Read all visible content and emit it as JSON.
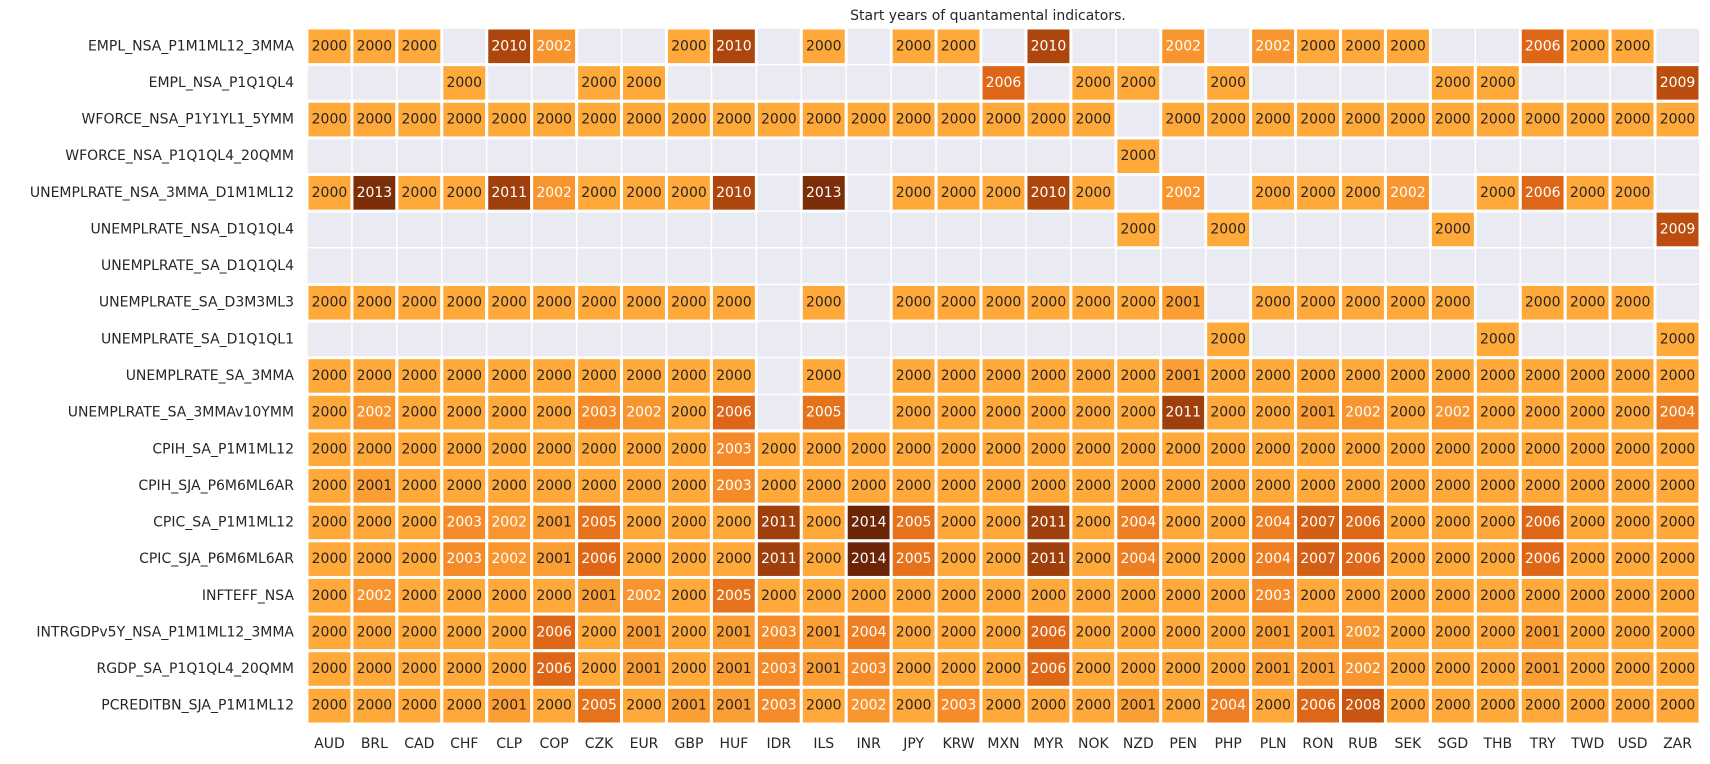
{
  "chart_data": {
    "type": "heatmap",
    "title": "Start years of quantamental indicators.",
    "x_categories": [
      "AUD",
      "BRL",
      "CAD",
      "CHF",
      "CLP",
      "COP",
      "CZK",
      "EUR",
      "GBP",
      "HUF",
      "IDR",
      "ILS",
      "INR",
      "JPY",
      "KRW",
      "MXN",
      "MYR",
      "NOK",
      "NZD",
      "PEN",
      "PHP",
      "PLN",
      "RON",
      "RUB",
      "SEK",
      "SGD",
      "THB",
      "TRY",
      "TWD",
      "USD",
      "ZAR"
    ],
    "y_categories": [
      "EMPL_NSA_P1M1ML12_3MMA",
      "EMPL_NSA_P1Q1QL4",
      "WFORCE_NSA_P1Y1YL1_5YMM",
      "WFORCE_NSA_P1Q1QL4_20QMM",
      "UNEMPLRATE_NSA_3MMA_D1M1ML12",
      "UNEMPLRATE_NSA_D1Q1QL4",
      "UNEMPLRATE_SA_D1Q1QL4",
      "UNEMPLRATE_SA_D3M3ML3",
      "UNEMPLRATE_SA_D1Q1QL1",
      "UNEMPLRATE_SA_3MMA",
      "UNEMPLRATE_SA_3MMAv10YMM",
      "CPIH_SA_P1M1ML12",
      "CPIH_SJA_P6M6ML6AR",
      "CPIC_SA_P1M1ML12",
      "CPIC_SJA_P6M6ML6AR",
      "INFTEFF_NSA",
      "INTRGDPv5Y_NSA_P1M1ML12_3MMA",
      "RGDP_SA_P1Q1QL4_20QMM",
      "PCREDITBN_SJA_P1M1ML12"
    ],
    "values": [
      [
        2000,
        2000,
        2000,
        null,
        2010,
        2002,
        null,
        null,
        2000,
        2010,
        null,
        2000,
        null,
        2000,
        2000,
        null,
        2010,
        null,
        null,
        2002,
        null,
        2002,
        2000,
        2000,
        2000,
        null,
        null,
        2006,
        2000,
        2000,
        null
      ],
      [
        null,
        null,
        null,
        2000,
        null,
        null,
        2000,
        2000,
        null,
        null,
        null,
        null,
        null,
        null,
        null,
        2006,
        null,
        2000,
        2000,
        null,
        2000,
        null,
        null,
        null,
        null,
        2000,
        2000,
        null,
        null,
        null,
        2009
      ],
      [
        2000,
        2000,
        2000,
        2000,
        2000,
        2000,
        2000,
        2000,
        2000,
        2000,
        2000,
        2000,
        2000,
        2000,
        2000,
        2000,
        2000,
        2000,
        null,
        2000,
        2000,
        2000,
        2000,
        2000,
        2000,
        2000,
        2000,
        2000,
        2000,
        2000,
        2000
      ],
      [
        null,
        null,
        null,
        null,
        null,
        null,
        null,
        null,
        null,
        null,
        null,
        null,
        null,
        null,
        null,
        null,
        null,
        null,
        2000,
        null,
        null,
        null,
        null,
        null,
        null,
        null,
        null,
        null,
        null,
        null,
        null
      ],
      [
        2000,
        2013,
        2000,
        2000,
        2011,
        2002,
        2000,
        2000,
        2000,
        2010,
        null,
        2013,
        null,
        2000,
        2000,
        2000,
        2010,
        2000,
        null,
        2002,
        null,
        2000,
        2000,
        2000,
        2002,
        null,
        2000,
        2006,
        2000,
        2000,
        null
      ],
      [
        null,
        null,
        null,
        null,
        null,
        null,
        null,
        null,
        null,
        null,
        null,
        null,
        null,
        null,
        null,
        null,
        null,
        null,
        2000,
        null,
        2000,
        null,
        null,
        null,
        null,
        2000,
        null,
        null,
        null,
        null,
        2009
      ],
      [
        null,
        null,
        null,
        null,
        null,
        null,
        null,
        null,
        null,
        null,
        null,
        null,
        null,
        null,
        null,
        null,
        null,
        null,
        null,
        null,
        null,
        null,
        null,
        null,
        null,
        null,
        null,
        null,
        null,
        null,
        null
      ],
      [
        2000,
        2000,
        2000,
        2000,
        2000,
        2000,
        2000,
        2000,
        2000,
        2000,
        null,
        2000,
        null,
        2000,
        2000,
        2000,
        2000,
        2000,
        2000,
        2001,
        null,
        2000,
        2000,
        2000,
        2000,
        2000,
        null,
        2000,
        2000,
        2000,
        null
      ],
      [
        null,
        null,
        null,
        null,
        null,
        null,
        null,
        null,
        null,
        null,
        null,
        null,
        null,
        null,
        null,
        null,
        null,
        null,
        null,
        null,
        2000,
        null,
        null,
        null,
        null,
        null,
        2000,
        null,
        null,
        null,
        2000
      ],
      [
        2000,
        2000,
        2000,
        2000,
        2000,
        2000,
        2000,
        2000,
        2000,
        2000,
        null,
        2000,
        null,
        2000,
        2000,
        2000,
        2000,
        2000,
        2000,
        2001,
        2000,
        2000,
        2000,
        2000,
        2000,
        2000,
        2000,
        2000,
        2000,
        2000,
        2000
      ],
      [
        2000,
        2002,
        2000,
        2000,
        2000,
        2000,
        2003,
        2002,
        2000,
        2006,
        null,
        2005,
        null,
        2000,
        2000,
        2000,
        2000,
        2000,
        2000,
        2011,
        2000,
        2000,
        2001,
        2002,
        2000,
        2002,
        2000,
        2000,
        2000,
        2000,
        2004
      ],
      [
        2000,
        2000,
        2000,
        2000,
        2000,
        2000,
        2000,
        2000,
        2000,
        2003,
        2000,
        2000,
        2000,
        2000,
        2000,
        2000,
        2000,
        2000,
        2000,
        2000,
        2000,
        2000,
        2000,
        2000,
        2000,
        2000,
        2000,
        2000,
        2000,
        2000,
        2000
      ],
      [
        2000,
        2001,
        2000,
        2000,
        2000,
        2000,
        2000,
        2000,
        2000,
        2003,
        2000,
        2000,
        2000,
        2000,
        2000,
        2000,
        2000,
        2000,
        2000,
        2000,
        2000,
        2000,
        2000,
        2000,
        2000,
        2000,
        2000,
        2000,
        2000,
        2000,
        2000
      ],
      [
        2000,
        2000,
        2000,
        2003,
        2002,
        2001,
        2005,
        2000,
        2000,
        2000,
        2011,
        2000,
        2014,
        2005,
        2000,
        2000,
        2011,
        2000,
        2004,
        2000,
        2000,
        2004,
        2007,
        2006,
        2000,
        2000,
        2000,
        2006,
        2000,
        2000,
        2000
      ],
      [
        2000,
        2000,
        2000,
        2003,
        2002,
        2001,
        2006,
        2000,
        2000,
        2000,
        2011,
        2000,
        2014,
        2005,
        2000,
        2000,
        2011,
        2000,
        2004,
        2000,
        2000,
        2004,
        2007,
        2006,
        2000,
        2000,
        2000,
        2006,
        2000,
        2000,
        2000
      ],
      [
        2000,
        2002,
        2000,
        2000,
        2000,
        2000,
        2001,
        2002,
        2000,
        2005,
        2000,
        2000,
        2000,
        2000,
        2000,
        2000,
        2000,
        2000,
        2000,
        2000,
        2000,
        2003,
        2000,
        2000,
        2000,
        2000,
        2000,
        2000,
        2000,
        2000,
        2000
      ],
      [
        2000,
        2000,
        2000,
        2000,
        2000,
        2006,
        2000,
        2001,
        2000,
        2001,
        2003,
        2001,
        2004,
        2000,
        2000,
        2000,
        2006,
        2000,
        2000,
        2000,
        2000,
        2001,
        2001,
        2002,
        2000,
        2000,
        2000,
        2001,
        2000,
        2000,
        2000
      ],
      [
        2000,
        2000,
        2000,
        2000,
        2000,
        2006,
        2000,
        2001,
        2000,
        2001,
        2003,
        2001,
        2003,
        2000,
        2000,
        2000,
        2006,
        2000,
        2000,
        2000,
        2000,
        2001,
        2001,
        2002,
        2000,
        2000,
        2000,
        2001,
        2000,
        2000,
        2000
      ],
      [
        2000,
        2000,
        2000,
        2000,
        2001,
        2000,
        2005,
        2000,
        2001,
        2001,
        2003,
        2000,
        2002,
        2000,
        2003,
        2000,
        2000,
        2000,
        2001,
        2000,
        2004,
        2000,
        2006,
        2008,
        2000,
        2000,
        2000,
        2000,
        2000,
        2000,
        2000
      ]
    ],
    "clim": [
      2000,
      2014
    ],
    "colormap": [
      "#fea93a",
      "#f58d29",
      "#e26a18",
      "#c4530f",
      "#9c3d0b",
      "#6b2506"
    ]
  }
}
